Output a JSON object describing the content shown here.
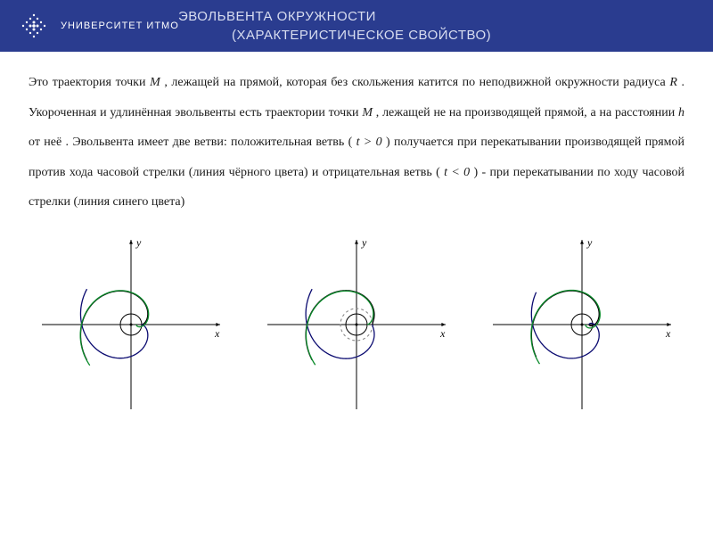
{
  "header": {
    "logo_text": "УНИВЕРСИТЕТ ИТМО",
    "title_line1": "ЭВОЛЬВЕНТА ОКРУЖНОСТИ",
    "title_line2": "(ХАРАКТЕРИСТИЧЕСКОЕ СВОЙСТВО)"
  },
  "paragraph": {
    "p1": "Это траектория точки ",
    "var_M1": "M",
    "p2": ", лежащей на прямой, которая без скольжения катится по неподвижной окружности радиуса ",
    "var_R": "R",
    "p3": " . Укороченная и удлинённая эвольвенты есть траектории точки ",
    "var_M2": "M",
    "p4": " , лежащей не на производящей прямой, а на расстоянии ",
    "var_h": "h",
    "p5": " от неё . Эвольвента имеет две ветви: положительная ветвь ( ",
    "cond1": "t > 0",
    "p6": " ) получается при перекатывании производящей прямой против хода часовой стрелки (линия чёрного цвета) и отрицательная ветвь ( ",
    "cond2": "t < 0",
    "p7": " ) - при перекатывании по ходу часовой стрелки (линия синего цвета)"
  },
  "colors": {
    "header_bg": "#2a3c8f",
    "header_fg": "#ffffff",
    "title_fg": "#d8ddf0",
    "body_bg": "#ffffff",
    "text": "#1a1a1a",
    "curve_positive": "#000000",
    "curve_negative": "#0a0a70",
    "curve_shortened": "#0a8a2a",
    "base_circle": "#000000",
    "dashed_circle": "#808080",
    "axis": "#000000"
  },
  "diagrams": {
    "axis_x_label": "x",
    "axis_y_label": "y",
    "base_radius": 12,
    "involutes": [
      {
        "label": "normal",
        "curves": [
          {
            "color": "#000000",
            "t0": 0,
            "t1": 5.2,
            "a": 12,
            "h": 0
          },
          {
            "color": "#0a0a70",
            "t0": -5.2,
            "t1": 0,
            "a": 12,
            "h": 0
          },
          {
            "color": "#0a8a2a",
            "t0": 0,
            "t1": 5.4,
            "a": 12,
            "h": -6
          }
        ]
      },
      {
        "label": "extended",
        "curves": [
          {
            "color": "#000000",
            "t0": 0,
            "t1": 5.1,
            "a": 12,
            "h": 6
          },
          {
            "color": "#0a0a70",
            "t0": -5.1,
            "t1": 0,
            "a": 12,
            "h": 6
          },
          {
            "color": "#0a8a2a",
            "t0": 0,
            "t1": 5.3,
            "a": 12,
            "h": 0
          }
        ],
        "dashedInner": 18
      },
      {
        "label": "shortened",
        "curves": [
          {
            "color": "#000000",
            "t0": 0,
            "t1": 5.2,
            "a": 12,
            "h": -4
          },
          {
            "color": "#0a0a70",
            "t0": -5.2,
            "t1": 0,
            "a": 12,
            "h": -4
          },
          {
            "color": "#0a8a2a",
            "t0": 0,
            "t1": 5.4,
            "a": 12,
            "h": -8
          }
        ]
      }
    ]
  }
}
